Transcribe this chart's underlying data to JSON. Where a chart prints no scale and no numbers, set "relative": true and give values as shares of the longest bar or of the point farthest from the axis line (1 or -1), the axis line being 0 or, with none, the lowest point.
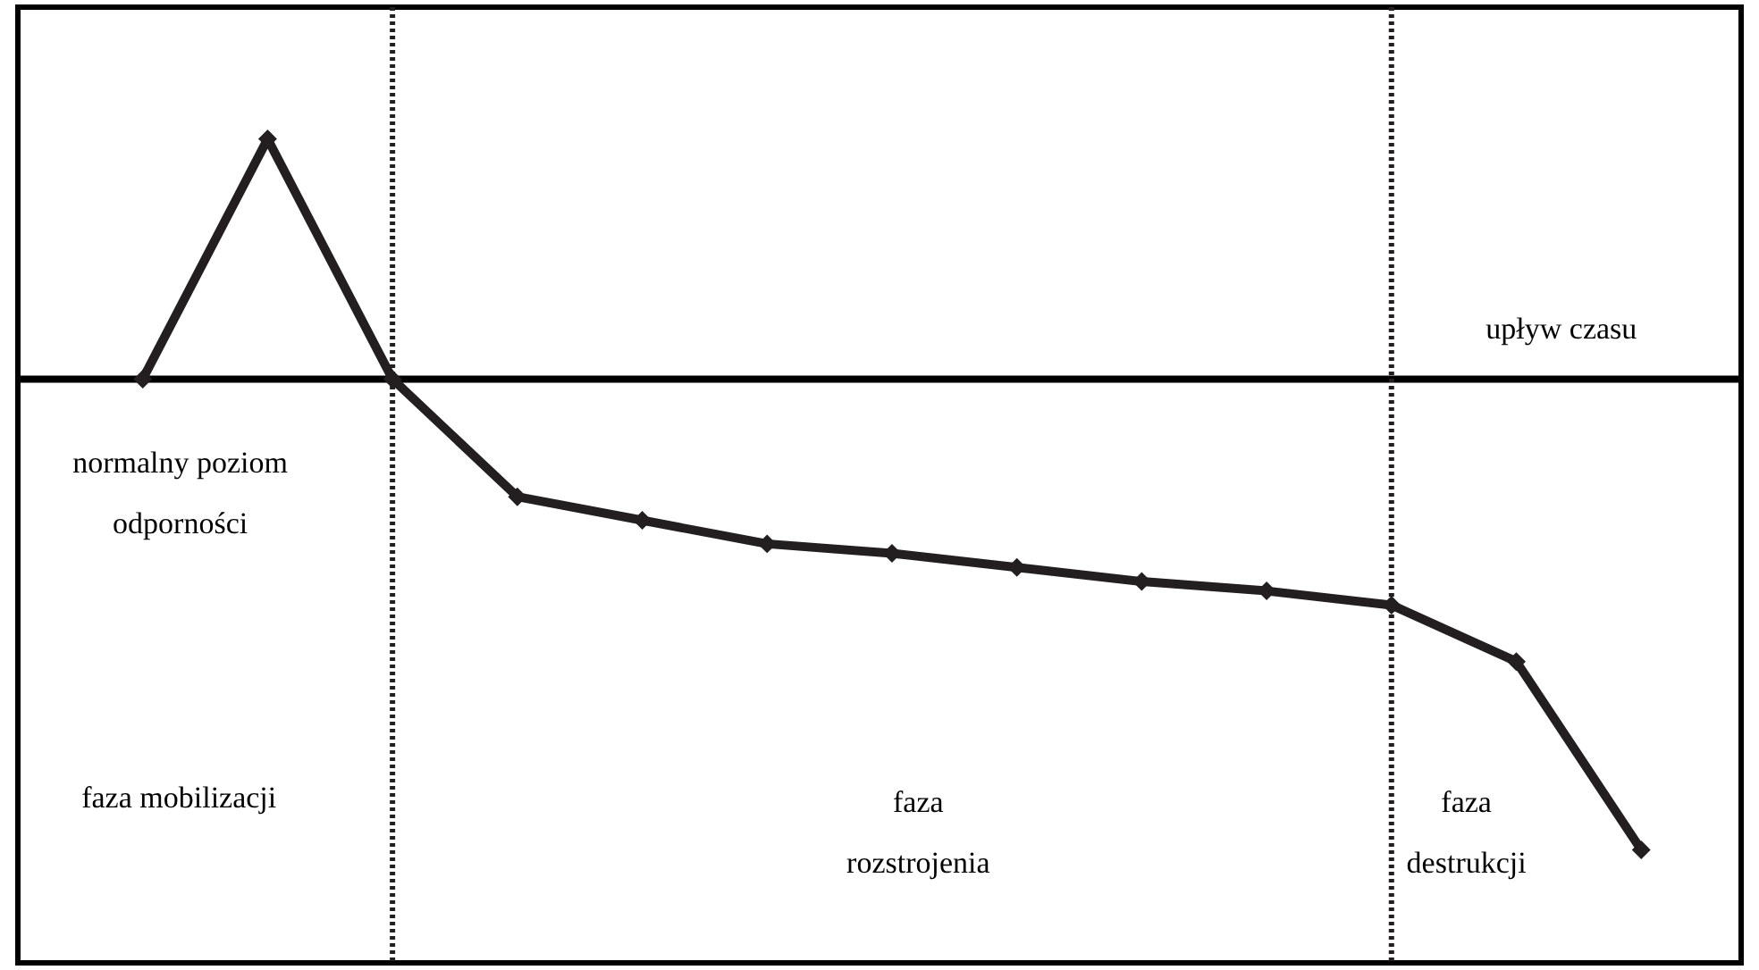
{
  "chart_data": {
    "type": "line",
    "relative": true,
    "categories": [
      null,
      null,
      null,
      null,
      null,
      null,
      null,
      null,
      null,
      null,
      null,
      null,
      null
    ],
    "series": [
      {
        "color": "#231f20",
        "values": [
          0,
          0.51,
          0,
          -0.25,
          -0.3,
          -0.35,
          -0.37,
          -0.4,
          -0.43,
          -0.45,
          -0.48,
          -0.6,
          -1
        ]
      }
    ],
    "marker": "diamond",
    "line_style": "solid",
    "tick_labels": false,
    "grid": false,
    "legend": false,
    "annotations": [
      "normalny poziom\nodporności",
      "upływ czasu",
      "faza mobilizacji",
      "faza\nrozstrojenia",
      "faza\ndestrukcji"
    ]
  }
}
